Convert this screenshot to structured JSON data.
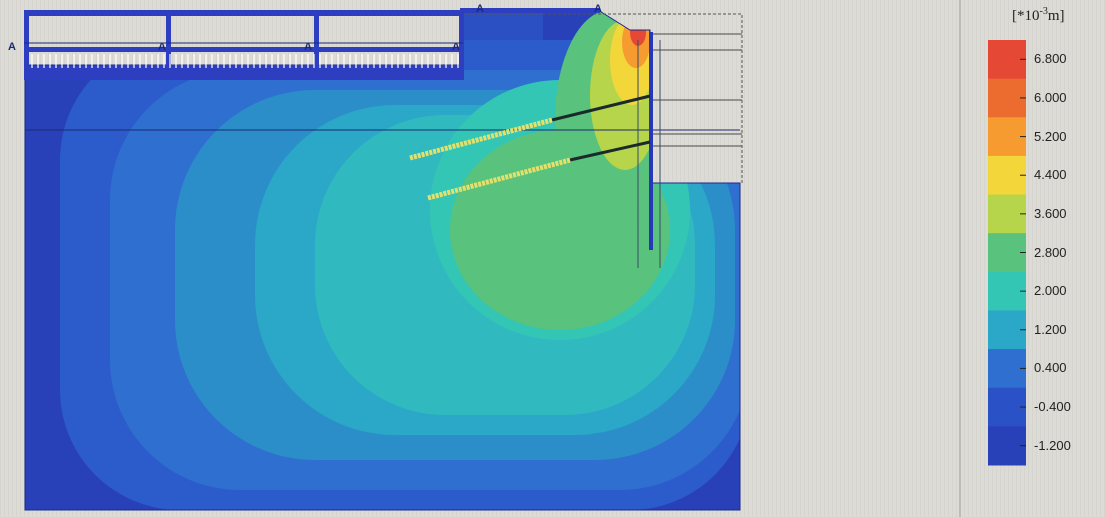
{
  "legend": {
    "unit_prefix": "[*10",
    "unit_exp": "-3",
    "unit_suffix": "m]",
    "levels": [
      "6.800",
      "6.000",
      "5.200",
      "4.400",
      "3.600",
      "2.800",
      "2.000",
      "1.200",
      "0.400",
      "-0.400",
      "-1.200"
    ],
    "colors": [
      "#e64836",
      "#ec6b2f",
      "#f59b2f",
      "#f2d63a",
      "#b7d54a",
      "#59c27c",
      "#34c6b5",
      "#2ba7c8",
      "#2f6fd0",
      "#2a52c6",
      "#2840b8"
    ]
  },
  "model": {
    "node_marker_label": "A"
  },
  "palette": {
    "background": "#d9d8d2",
    "contour_low": "#2840b8",
    "contour_high": "#e64836",
    "structure": "#2d3fc0",
    "anchor_grout": "#e4e06a"
  }
}
